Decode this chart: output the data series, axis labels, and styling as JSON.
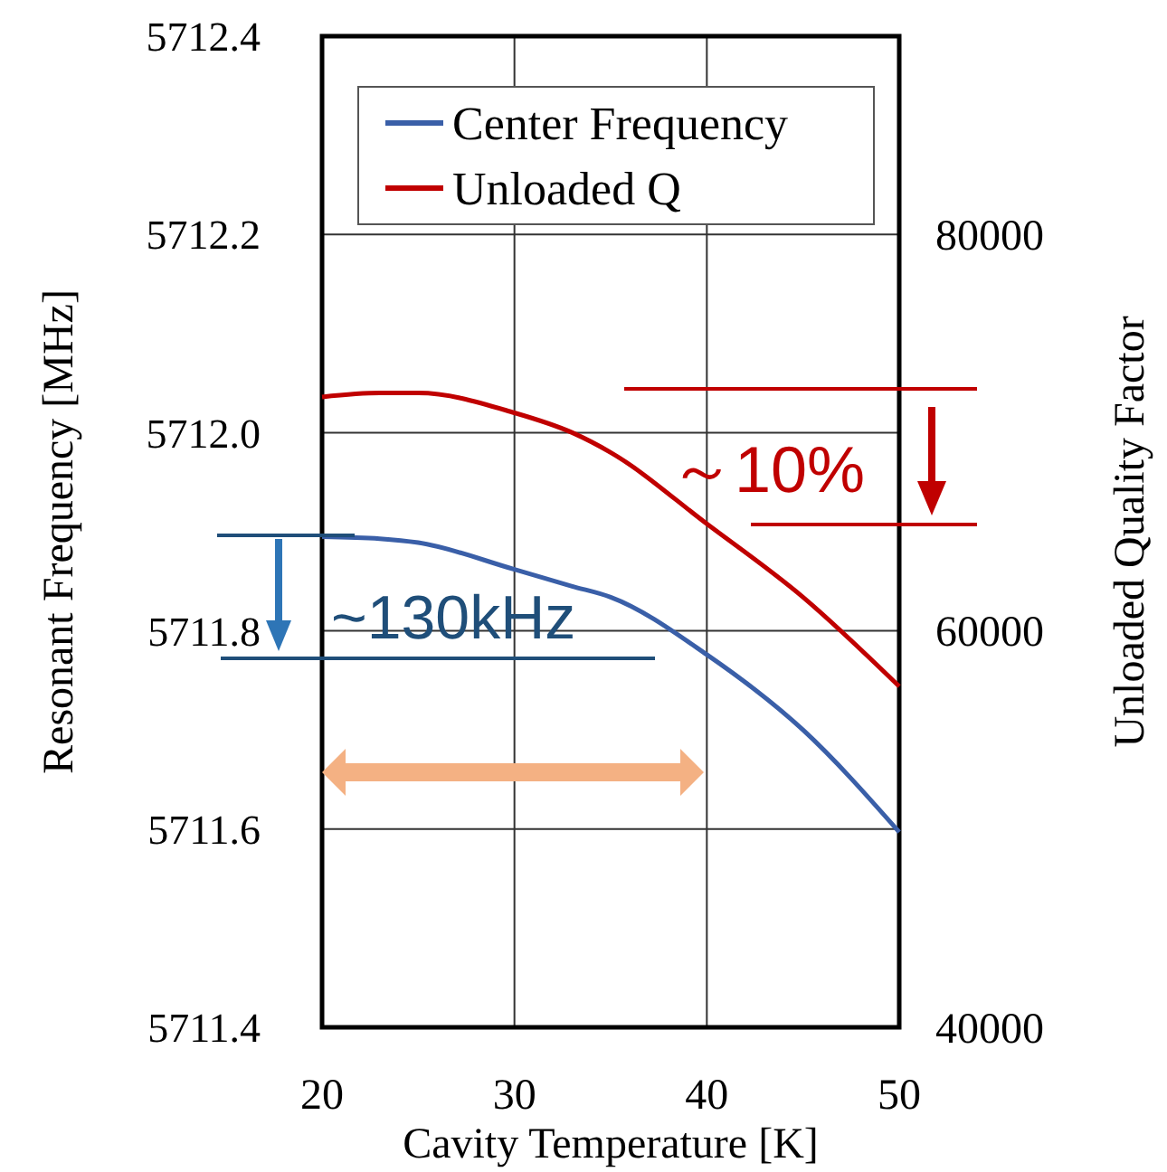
{
  "chart_data": {
    "type": "line",
    "xlabel": "Cavity Temperature [K]",
    "ylabel": "Resonant Frequency [MHz]",
    "y2label": "Unloaded Quality Factor",
    "x": [
      20,
      23,
      25,
      30,
      33,
      35,
      40,
      45,
      50
    ],
    "series": [
      {
        "name": "Center Frequency",
        "color": "#3a5fa8",
        "values": [
          5711.895,
          5711.893,
          5711.889,
          5711.862,
          5711.845,
          5711.834,
          5711.776,
          5711.7,
          5711.597
        ]
      },
      {
        "name": "Unloaded Q",
        "color": "#c00000",
        "axis": "y2",
        "values": [
          71800,
          72000,
          72000,
          71000,
          70000,
          69000,
          65400,
          61700,
          57200
        ]
      }
    ],
    "xlim": [
      20,
      50
    ],
    "xticks": [
      20,
      30,
      40,
      50
    ],
    "ylim": [
      5711.4,
      5712.4
    ],
    "yticks": [
      {
        "value": 5711.4,
        "label": "5711.4"
      },
      {
        "value": 5711.6,
        "label": "5711.6"
      },
      {
        "value": 5711.8,
        "label": "5711.8"
      },
      {
        "value": 5712.0,
        "label": "5712.0"
      },
      {
        "value": 5712.2,
        "label": "5712.2"
      },
      {
        "value": 5712.4,
        "label": "5712.4"
      }
    ],
    "y2lim": [
      40000,
      90000
    ],
    "y2ticks": [
      40000,
      60000,
      80000
    ],
    "grid": true,
    "legend": "top left",
    "line_style": "solid",
    "annotations": [
      "~130kHz",
      "～10%"
    ]
  }
}
